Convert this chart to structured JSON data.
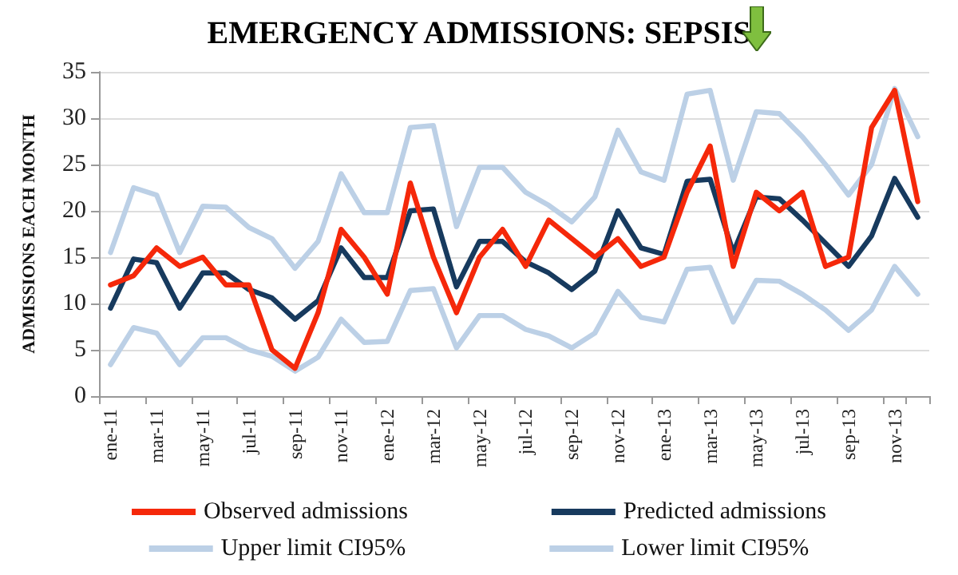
{
  "chart_data": {
    "type": "line",
    "title": "EMERGENCY ADMISSIONS: SEPSIS",
    "ylabel": "ADMISSIONS EACH MONTH",
    "categories": [
      "ene-11",
      null,
      "mar-11",
      null,
      "may-11",
      null,
      "jul-11",
      null,
      "sep-11",
      null,
      "nov-11",
      null,
      "ene-12",
      null,
      "mar-12",
      null,
      "may-12",
      null,
      "jul-12",
      null,
      "sep-12",
      null,
      "nov-12",
      null,
      "ene-13",
      null,
      "mar-13",
      null,
      "may-13",
      null,
      "jul-13",
      null,
      "sep-13",
      null,
      "nov-13",
      null
    ],
    "series": [
      {
        "name": "Observed admissions",
        "color": "#f5280a",
        "values": [
          12,
          13,
          16,
          14,
          15,
          12,
          12,
          5,
          3,
          9,
          18,
          15,
          11,
          23,
          15,
          9,
          15,
          18,
          14,
          19,
          17,
          15,
          17,
          14,
          15,
          22,
          27,
          14,
          22,
          20,
          22,
          14,
          15,
          29,
          33,
          21
        ]
      },
      {
        "name": "Predicted admissions",
        "color": "#173a5e",
        "values": [
          9.5,
          14.8,
          14.4,
          9.5,
          13.3,
          13.3,
          11.5,
          10.6,
          8.3,
          10.3,
          16,
          12.8,
          12.8,
          20,
          20.2,
          11.8,
          16.7,
          16.7,
          14.5,
          13.3,
          11.5,
          13.5,
          20,
          16,
          15.3,
          23.2,
          23.4,
          15.5,
          21.5,
          21.3,
          19,
          16.5,
          14,
          17.3,
          23.5,
          19.3
        ]
      },
      {
        "name": "Upper limit CI95%",
        "color": "#bcd0e6",
        "values": [
          15.5,
          22.5,
          21.7,
          15.5,
          20.5,
          20.4,
          18.2,
          17,
          13.8,
          16.7,
          24,
          19.8,
          19.8,
          29,
          29.2,
          18.3,
          24.7,
          24.7,
          22,
          20.6,
          18.8,
          21.5,
          28.7,
          24.2,
          23.3,
          32.6,
          33,
          23.3,
          30.7,
          30.5,
          28,
          25,
          21.7,
          25,
          33.2,
          28
        ]
      },
      {
        "name": "Lower limit CI95%",
        "color": "#bcd0e6",
        "values": [
          3.4,
          7.4,
          6.8,
          3.4,
          6.3,
          6.3,
          5,
          4.3,
          2.7,
          4.2,
          8.3,
          5.8,
          5.9,
          11.4,
          11.6,
          5.2,
          8.7,
          8.7,
          7.2,
          6.5,
          5.2,
          6.8,
          11.3,
          8.5,
          8,
          13.7,
          13.9,
          8,
          12.5,
          12.4,
          11,
          9.3,
          7.1,
          9.3,
          14,
          11
        ]
      }
    ],
    "ylim": [
      0,
      35
    ],
    "yticks": [
      0,
      5,
      10,
      15,
      20,
      25,
      30,
      35
    ],
    "grid": "y",
    "legend": "bottom",
    "marker": "none",
    "line_style": "solid"
  }
}
